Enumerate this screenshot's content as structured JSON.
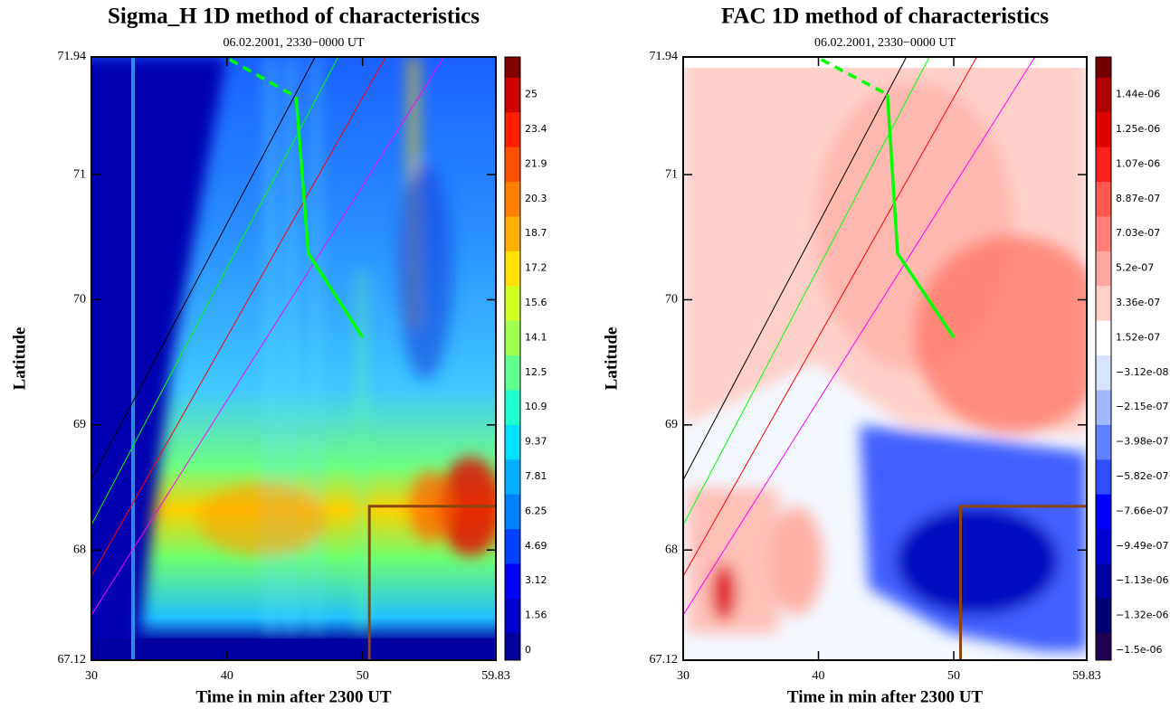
{
  "chart_data": [
    {
      "type": "contour",
      "title": "Sigma_H 1D method of characteristics",
      "subtitle": "06.02.2001, 2330−0000 UT",
      "xlabel": "Time in min after 2300 UT",
      "ylabel": "Latitude",
      "xlim": [
        30,
        59.83
      ],
      "xticks": [
        30,
        40,
        50,
        59.83
      ],
      "ylim": [
        67.12,
        71.94
      ],
      "yticks": [
        67.12,
        68,
        69,
        70,
        71,
        71.94
      ],
      "colorbar": {
        "levels": [
          0,
          1.56,
          3.12,
          4.69,
          6.25,
          7.81,
          9.37,
          10.9,
          12.5,
          14.1,
          15.6,
          17.2,
          18.7,
          20.3,
          21.9,
          23.4,
          25
        ],
        "colors": [
          "#000099",
          "#0000cc",
          "#0000ff",
          "#0040ff",
          "#0080ff",
          "#00b0ff",
          "#00e0ff",
          "#20ffd0",
          "#60ff90",
          "#a0ff50",
          "#d0ff20",
          "#ffe000",
          "#ffb000",
          "#ff8000",
          "#ff5000",
          "#ff2000",
          "#d00000",
          "#800000"
        ]
      },
      "series": [
        {
          "color": "#000000",
          "linewidth": 1,
          "x": [
            30,
            46.5
          ],
          "y": [
            68.56,
            71.94
          ]
        },
        {
          "color": "#00ff00",
          "linewidth": 1,
          "x": [
            30,
            48.2
          ],
          "y": [
            68.2,
            71.94
          ]
        },
        {
          "color": "#ff0000",
          "linewidth": 1,
          "x": [
            30,
            51.7
          ],
          "y": [
            67.79,
            71.94
          ]
        },
        {
          "color": "#ff00ff",
          "linewidth": 1,
          "x": [
            30,
            56
          ],
          "y": [
            67.48,
            71.94
          ]
        },
        {
          "color": "#00ff00",
          "linewidth": 3.5,
          "style": "dashed",
          "x": [
            40.2,
            45.1
          ],
          "y": [
            71.92,
            71.62
          ]
        },
        {
          "color": "#00ff00",
          "linewidth": 3.5,
          "x": [
            45.1,
            46,
            50
          ],
          "y": [
            71.62,
            70.37,
            69.7
          ]
        },
        {
          "color": "#8b4513",
          "linewidth": 3,
          "x": [
            50.5,
            50.5,
            59.83
          ],
          "y": [
            67.12,
            68.35,
            68.35
          ]
        }
      ]
    },
    {
      "type": "contour",
      "title": "FAC 1D method of characteristics",
      "subtitle": "06.02.2001, 2330−0000 UT",
      "xlabel": "Time in min after 2300 UT",
      "ylabel": "Latitude",
      "xlim": [
        30,
        59.83
      ],
      "xticks": [
        30,
        40,
        50,
        59.83
      ],
      "ylim": [
        67.12,
        71.94
      ],
      "yticks": [
        67.12,
        68,
        69,
        70,
        71,
        71.94
      ],
      "colorbar": {
        "levels": [
          {
            "value": -1.5e-06,
            "label": "−1.5e-06"
          },
          {
            "value": -1.32e-06,
            "label": "−1.32e-06"
          },
          {
            "value": -1.13e-06,
            "label": "−1.13e-06"
          },
          {
            "value": -9.49e-07,
            "label": "−9.49e-07"
          },
          {
            "value": -7.66e-07,
            "label": "−7.66e-07"
          },
          {
            "value": -5.82e-07,
            "label": "−5.82e-07"
          },
          {
            "value": -3.98e-07,
            "label": "−3.98e-07"
          },
          {
            "value": -2.15e-07,
            "label": "−2.15e-07"
          },
          {
            "value": -3.12e-08,
            "label": "−3.12e-08"
          },
          {
            "value": 1.52e-07,
            "label": "1.52e-07"
          },
          {
            "value": 3.36e-07,
            "label": "3.36e-07"
          },
          {
            "value": 5.2e-07,
            "label": "5.2e-07"
          },
          {
            "value": 7.03e-07,
            "label": "7.03e-07"
          },
          {
            "value": 8.87e-07,
            "label": "8.87e-07"
          },
          {
            "value": 1.07e-06,
            "label": "1.07e-06"
          },
          {
            "value": 1.25e-06,
            "label": "1.25e-06"
          },
          {
            "value": 1.44e-06,
            "label": "1.44e-06"
          }
        ],
        "colors": [
          "#200050",
          "#000070",
          "#0000a0",
          "#0000d0",
          "#0000ff",
          "#3050ff",
          "#6080ff",
          "#a0b8ff",
          "#d8e4ff",
          "#ffffff",
          "#ffd0c8",
          "#ffa8a0",
          "#ff8078",
          "#ff5850",
          "#ff2020",
          "#e00000",
          "#b00000",
          "#700000"
        ]
      },
      "series": [
        {
          "color": "#000000",
          "linewidth": 1,
          "x": [
            30,
            46.5
          ],
          "y": [
            68.56,
            71.94
          ]
        },
        {
          "color": "#00ff00",
          "linewidth": 1,
          "x": [
            30,
            48.2
          ],
          "y": [
            68.2,
            71.94
          ]
        },
        {
          "color": "#ff0000",
          "linewidth": 1,
          "x": [
            30,
            51.7
          ],
          "y": [
            67.79,
            71.94
          ]
        },
        {
          "color": "#ff00ff",
          "linewidth": 1,
          "x": [
            30,
            56
          ],
          "y": [
            67.48,
            71.94
          ]
        },
        {
          "color": "#00ff00",
          "linewidth": 3.5,
          "style": "dashed",
          "x": [
            40.2,
            45.1
          ],
          "y": [
            71.92,
            71.64
          ]
        },
        {
          "color": "#00ff00",
          "linewidth": 3.5,
          "x": [
            45.1,
            45.85,
            50
          ],
          "y": [
            71.64,
            70.37,
            69.7
          ]
        },
        {
          "color": "#8b4513",
          "linewidth": 3,
          "x": [
            50.5,
            50.5,
            59.83
          ],
          "y": [
            67.12,
            68.35,
            68.35
          ]
        }
      ]
    }
  ]
}
